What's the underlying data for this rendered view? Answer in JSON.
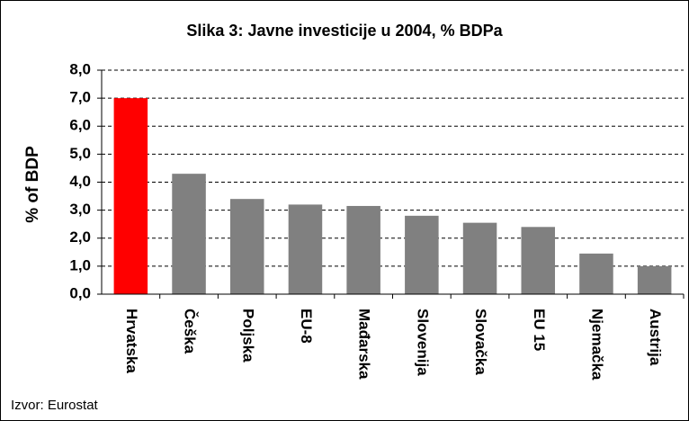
{
  "chart_data": {
    "type": "bar",
    "title": "Slika 3: Javne investicije u 2004, % BDPa",
    "y_label": "% of BDP",
    "source": "Izvor: Eurostat",
    "categories": [
      "Hrvatska",
      "Češka",
      "Poljska",
      "EU-8",
      "Mađarska",
      "Slovenija",
      "Slovačka",
      "EU 15",
      "Njemačka",
      "Austrija"
    ],
    "values": [
      7.0,
      4.3,
      3.4,
      3.2,
      3.15,
      2.8,
      2.55,
      2.4,
      1.45,
      1.0
    ],
    "colors": [
      "#ff0000",
      "#808080",
      "#808080",
      "#808080",
      "#808080",
      "#808080",
      "#808080",
      "#808080",
      "#808080",
      "#808080"
    ],
    "ylim": [
      0,
      8
    ],
    "yticks": [
      {
        "value": 0,
        "label": "0,0"
      },
      {
        "value": 1,
        "label": "1,0"
      },
      {
        "value": 2,
        "label": "2,0"
      },
      {
        "value": 3,
        "label": "3,0"
      },
      {
        "value": 4,
        "label": "4,0"
      },
      {
        "value": 5,
        "label": "5,0"
      },
      {
        "value": 6,
        "label": "6,0"
      },
      {
        "value": 7,
        "label": "7,0"
      },
      {
        "value": 8,
        "label": "8,0"
      }
    ],
    "grid": true
  }
}
